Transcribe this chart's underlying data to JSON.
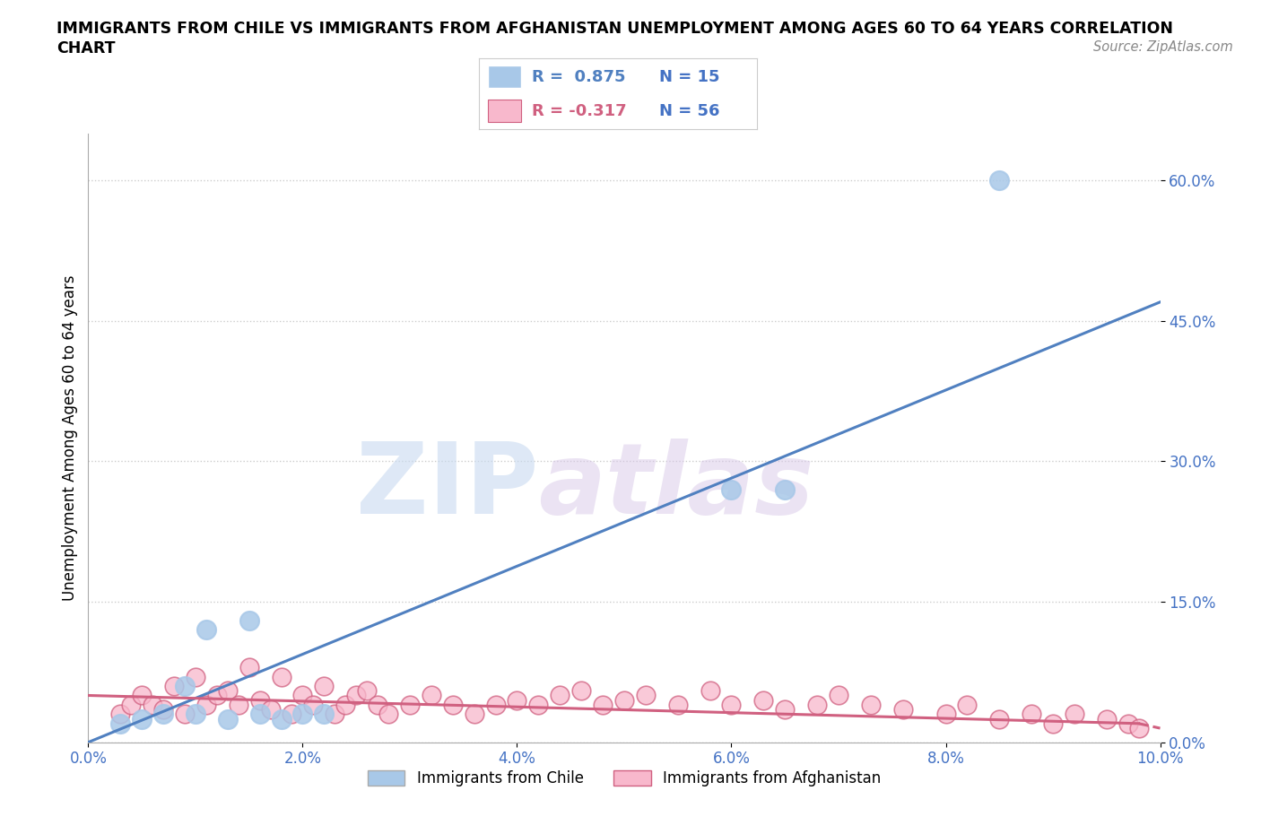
{
  "title_line1": "IMMIGRANTS FROM CHILE VS IMMIGRANTS FROM AFGHANISTAN UNEMPLOYMENT AMONG AGES 60 TO 64 YEARS CORRELATION",
  "title_line2": "CHART",
  "source": "Source: ZipAtlas.com",
  "ylabel": "Unemployment Among Ages 60 to 64 years",
  "chile_R": 0.875,
  "chile_N": 15,
  "afghanistan_R": -0.317,
  "afghanistan_N": 56,
  "chile_color": "#a8c8e8",
  "chile_line_color": "#5080c0",
  "afghanistan_color": "#f8b8cc",
  "afghanistan_line_color": "#d06080",
  "watermark_zip": "ZIP",
  "watermark_atlas": "atlas",
  "xlim": [
    0.0,
    0.1
  ],
  "ylim": [
    0.0,
    0.65
  ],
  "xticks": [
    0.0,
    0.02,
    0.04,
    0.06,
    0.08,
    0.1
  ],
  "yticks": [
    0.0,
    0.15,
    0.3,
    0.45,
    0.6
  ],
  "axis_color": "#4472c4",
  "legend_R_chile": "R =  0.875",
  "legend_N_chile": "N = 15",
  "legend_R_afghanistan": "R = -0.317",
  "legend_N_afghanistan": "N = 56",
  "chile_x": [
    0.003,
    0.005,
    0.007,
    0.009,
    0.01,
    0.011,
    0.013,
    0.015,
    0.016,
    0.018,
    0.02,
    0.022,
    0.065,
    0.085,
    0.06
  ],
  "chile_y": [
    0.02,
    0.025,
    0.03,
    0.06,
    0.03,
    0.12,
    0.025,
    0.13,
    0.03,
    0.025,
    0.03,
    0.03,
    0.27,
    0.6,
    0.27
  ],
  "afghanistan_x": [
    0.003,
    0.004,
    0.005,
    0.006,
    0.007,
    0.008,
    0.009,
    0.01,
    0.011,
    0.012,
    0.013,
    0.014,
    0.015,
    0.016,
    0.017,
    0.018,
    0.019,
    0.02,
    0.021,
    0.022,
    0.023,
    0.024,
    0.025,
    0.026,
    0.027,
    0.028,
    0.03,
    0.032,
    0.034,
    0.036,
    0.038,
    0.04,
    0.042,
    0.044,
    0.046,
    0.048,
    0.05,
    0.052,
    0.055,
    0.058,
    0.06,
    0.063,
    0.065,
    0.068,
    0.07,
    0.073,
    0.076,
    0.08,
    0.082,
    0.085,
    0.088,
    0.09,
    0.092,
    0.095,
    0.097,
    0.098
  ],
  "afghanistan_y": [
    0.03,
    0.04,
    0.05,
    0.04,
    0.035,
    0.06,
    0.03,
    0.07,
    0.04,
    0.05,
    0.055,
    0.04,
    0.08,
    0.045,
    0.035,
    0.07,
    0.03,
    0.05,
    0.04,
    0.06,
    0.03,
    0.04,
    0.05,
    0.055,
    0.04,
    0.03,
    0.04,
    0.05,
    0.04,
    0.03,
    0.04,
    0.045,
    0.04,
    0.05,
    0.055,
    0.04,
    0.045,
    0.05,
    0.04,
    0.055,
    0.04,
    0.045,
    0.035,
    0.04,
    0.05,
    0.04,
    0.035,
    0.03,
    0.04,
    0.025,
    0.03,
    0.02,
    0.03,
    0.025,
    0.02,
    0.015
  ],
  "chile_line_x0": 0.0,
  "chile_line_y0": 0.0,
  "chile_line_x1": 0.1,
  "chile_line_y1": 0.47,
  "afg_line_x0": 0.0,
  "afg_line_y0": 0.05,
  "afg_line_x1_solid": 0.098,
  "afg_line_y1_solid": 0.02,
  "afg_line_x1_dash": 0.1,
  "afg_line_y1_dash": 0.015
}
